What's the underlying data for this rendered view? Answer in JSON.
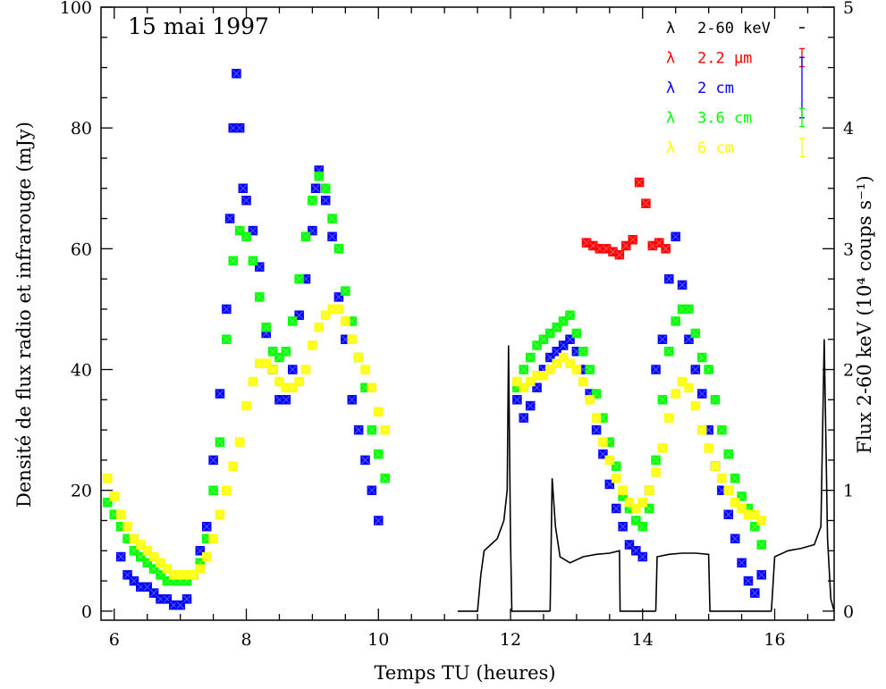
{
  "chart_data": {
    "type": "scatter",
    "title": "15 mai 1997",
    "xlabel": "Temps TU (heures)",
    "ylabel": "Densité de flux radio et infrarouge (mJy)",
    "y2label": "Flux 2-60 keV (10⁴ coups s⁻¹)",
    "xlim": [
      5.8,
      16.9
    ],
    "ylim": [
      -1.5,
      100
    ],
    "y2lim": [
      -0.075,
      5
    ],
    "xticks": [
      "6",
      "8",
      "10",
      "12",
      "14",
      "16"
    ],
    "yticks": [
      "0",
      "20",
      "40",
      "60",
      "80",
      "100"
    ],
    "y2ticks": [
      "0",
      "1",
      "2",
      "3",
      "4",
      "5"
    ],
    "grid": false,
    "legend_position": "top-right",
    "series": [
      {
        "name": "2-60 keV",
        "lambda": "λ",
        "color": "#000000",
        "marker": "line",
        "errorbar_mJy": 0,
        "segments": [
          [
            [
              11.2,
              0.0
            ],
            [
              11.5,
              0.0
            ],
            [
              11.55,
              0.3
            ],
            [
              11.6,
              0.5
            ],
            [
              11.7,
              0.55
            ],
            [
              11.8,
              0.6
            ],
            [
              11.9,
              0.75
            ],
            [
              11.95,
              1.0
            ],
            [
              11.97,
              2.2
            ],
            [
              12.0,
              0.6
            ],
            [
              12.02,
              0.0
            ],
            [
              12.6,
              0.0
            ]
          ],
          [
            [
              12.6,
              0.0
            ],
            [
              12.63,
              1.1
            ],
            [
              12.68,
              0.7
            ],
            [
              12.75,
              0.45
            ],
            [
              12.9,
              0.4
            ],
            [
              13.1,
              0.45
            ],
            [
              13.3,
              0.47
            ],
            [
              13.5,
              0.48
            ],
            [
              13.65,
              0.5
            ],
            [
              13.66,
              0.0
            ],
            [
              14.2,
              0.0
            ]
          ],
          [
            [
              14.2,
              0.0
            ],
            [
              14.22,
              0.45
            ],
            [
              14.4,
              0.47
            ],
            [
              14.6,
              0.48
            ],
            [
              14.8,
              0.48
            ],
            [
              15.0,
              0.47
            ],
            [
              15.02,
              0.0
            ],
            [
              15.95,
              0.0
            ]
          ],
          [
            [
              15.95,
              0.0
            ],
            [
              16.0,
              0.45
            ],
            [
              16.2,
              0.5
            ],
            [
              16.4,
              0.52
            ],
            [
              16.6,
              0.55
            ],
            [
              16.7,
              0.7
            ],
            [
              16.75,
              2.25
            ],
            [
              16.8,
              0.6
            ],
            [
              16.85,
              0.1
            ],
            [
              16.9,
              0.0
            ]
          ]
        ]
      },
      {
        "name": "2.2 μm",
        "lambda": "λ",
        "color": "#ff0000",
        "marker": "square",
        "errorbar_mJy": 1.5,
        "x": [
          13.15,
          13.25,
          13.35,
          13.45,
          13.55,
          13.65,
          13.75,
          13.85,
          13.95,
          14.05,
          14.15,
          14.25,
          14.35
        ],
        "y": [
          61,
          60.5,
          60,
          60,
          59.5,
          59,
          60.5,
          61.5,
          71,
          67.5,
          60.5,
          61,
          60
        ]
      },
      {
        "name": "2 cm",
        "lambda": "λ",
        "color": "#0000ff",
        "marker": "square",
        "errorbar_mJy": 5,
        "x": [
          6.0,
          6.1,
          6.2,
          6.3,
          6.4,
          6.5,
          6.6,
          6.7,
          6.8,
          6.9,
          7.0,
          7.1,
          7.2,
          7.3,
          7.4,
          7.5,
          7.6,
          7.7,
          7.75,
          7.8,
          7.85,
          7.9,
          7.95,
          8.0,
          8.1,
          8.2,
          8.3,
          8.4,
          8.5,
          8.6,
          8.7,
          8.8,
          8.9,
          9.0,
          9.05,
          9.1,
          9.2,
          9.3,
          9.4,
          9.5,
          9.6,
          9.7,
          9.8,
          9.9,
          10.0,
          12.1,
          12.2,
          12.3,
          12.4,
          12.5,
          12.6,
          12.7,
          12.8,
          12.9,
          13.0,
          13.1,
          13.2,
          13.3,
          13.4,
          13.5,
          13.6,
          13.7,
          13.8,
          13.9,
          14.0,
          14.1,
          14.2,
          14.3,
          14.4,
          14.5,
          14.6,
          14.7,
          14.8,
          14.9,
          15.0,
          15.1,
          15.2,
          15.3,
          15.4,
          15.5,
          15.6,
          15.7,
          15.8
        ],
        "y": [
          16,
          9,
          6,
          5,
          4,
          4,
          3,
          2,
          2,
          1,
          1,
          2,
          6,
          10,
          14,
          25,
          36,
          50,
          65,
          80,
          89,
          80,
          70,
          68,
          63,
          57,
          46,
          40,
          35,
          35,
          40,
          49,
          55,
          63,
          70,
          73,
          68,
          62,
          52,
          45,
          35,
          30,
          25,
          20,
          15,
          35,
          32,
          34,
          37,
          40,
          42,
          43,
          44,
          45,
          43,
          40,
          36,
          30,
          26,
          21,
          17,
          14,
          11,
          10,
          9,
          20,
          40,
          45,
          55,
          62,
          54,
          45,
          40,
          36,
          30,
          24,
          20,
          16,
          12,
          8,
          5,
          3,
          6
        ]
      },
      {
        "name": "3.6 cm",
        "lambda": "λ",
        "color": "#00ff00",
        "marker": "square",
        "errorbar_mJy": 1.5,
        "x": [
          5.9,
          6.0,
          6.1,
          6.2,
          6.3,
          6.4,
          6.5,
          6.6,
          6.7,
          6.8,
          6.9,
          7.0,
          7.1,
          7.2,
          7.3,
          7.4,
          7.5,
          7.6,
          7.7,
          7.8,
          7.9,
          8.0,
          8.1,
          8.2,
          8.3,
          8.4,
          8.5,
          8.6,
          8.7,
          8.8,
          8.9,
          9.0,
          9.1,
          9.2,
          9.3,
          9.4,
          9.5,
          9.6,
          9.7,
          9.8,
          9.9,
          10.0,
          10.1,
          12.1,
          12.2,
          12.3,
          12.4,
          12.5,
          12.6,
          12.7,
          12.8,
          12.9,
          13.0,
          13.1,
          13.2,
          13.3,
          13.4,
          13.5,
          13.6,
          13.7,
          13.8,
          13.9,
          14.0,
          14.1,
          14.2,
          14.3,
          14.4,
          14.5,
          14.6,
          14.7,
          14.8,
          14.9,
          15.0,
          15.1,
          15.2,
          15.3,
          15.4,
          15.5,
          15.6,
          15.7,
          15.8
        ],
        "y": [
          18,
          16,
          14,
          12,
          10,
          9,
          8,
          7,
          6,
          5,
          5,
          5,
          5,
          6,
          8,
          12,
          20,
          28,
          45,
          58,
          63,
          62,
          58,
          52,
          47,
          43,
          42,
          43,
          48,
          55,
          62,
          68,
          72,
          70,
          65,
          60,
          53,
          48,
          42,
          37,
          30,
          26,
          22,
          37,
          40,
          42,
          44,
          45,
          46,
          47,
          48,
          49,
          46,
          43,
          40,
          36,
          32,
          28,
          24,
          19,
          17,
          15,
          14,
          17,
          25,
          35,
          43,
          48,
          50,
          50,
          46,
          42,
          40,
          35,
          30,
          26,
          22,
          19,
          17,
          14,
          11
        ]
      },
      {
        "name": "6 cm",
        "lambda": "λ",
        "color": "#ffff00",
        "marker": "square",
        "errorbar_mJy": 1.5,
        "x": [
          5.9,
          6.0,
          6.1,
          6.2,
          6.3,
          6.4,
          6.5,
          6.6,
          6.7,
          6.8,
          6.9,
          7.0,
          7.1,
          7.2,
          7.3,
          7.4,
          7.5,
          7.6,
          7.7,
          7.8,
          7.9,
          8.0,
          8.1,
          8.2,
          8.3,
          8.4,
          8.5,
          8.6,
          8.7,
          8.8,
          8.9,
          9.0,
          9.1,
          9.2,
          9.3,
          9.4,
          9.5,
          9.6,
          9.7,
          9.8,
          9.9,
          10.0,
          10.1,
          12.1,
          12.2,
          12.3,
          12.4,
          12.5,
          12.6,
          12.7,
          12.8,
          12.9,
          13.0,
          13.1,
          13.2,
          13.3,
          13.4,
          13.5,
          13.6,
          13.7,
          13.8,
          13.9,
          14.0,
          14.1,
          14.2,
          14.3,
          14.4,
          14.5,
          14.6,
          14.7,
          14.8,
          14.9,
          15.0,
          15.1,
          15.2,
          15.3,
          15.4,
          15.5,
          15.6,
          15.7,
          15.8
        ],
        "y": [
          22,
          19,
          16,
          14,
          12,
          11,
          10,
          9,
          8,
          7,
          6,
          6,
          6,
          6,
          7,
          9,
          12,
          16,
          20,
          24,
          28,
          34,
          38,
          41,
          41,
          40,
          38,
          37,
          37,
          38,
          40,
          44,
          47,
          49,
          50,
          50,
          48,
          45,
          42,
          40,
          37,
          33,
          30,
          38,
          37,
          38,
          39,
          39,
          40,
          41,
          42,
          41,
          40,
          38,
          35,
          32,
          28,
          25,
          22,
          20,
          18,
          17,
          18,
          20,
          23,
          27,
          32,
          36,
          38,
          37,
          34,
          30,
          27,
          24,
          22,
          20,
          18,
          17,
          16,
          16,
          15
        ]
      }
    ]
  }
}
